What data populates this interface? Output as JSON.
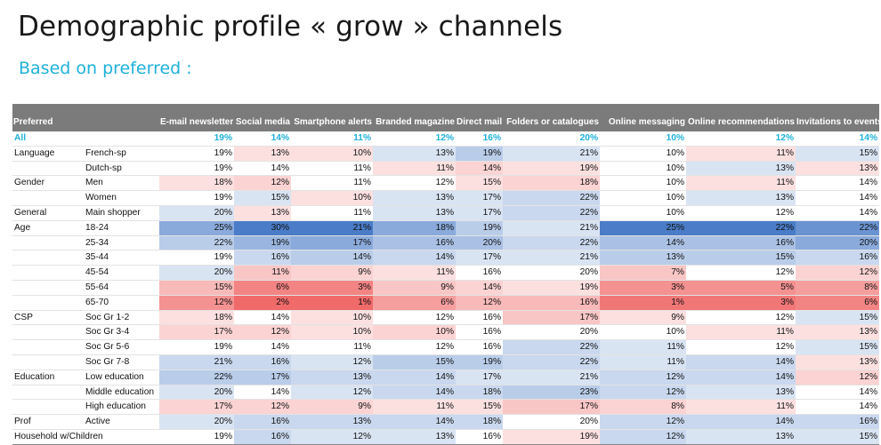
{
  "page": {
    "title": "Demographic profile « grow » channels",
    "subtitle": "Based on preferred :"
  },
  "colors": {
    "header_bg": "#7b7b7b",
    "accent": "#1fb1d9",
    "high": "#4a7cc7",
    "low": "#f06a6a"
  },
  "chart_data": {
    "type": "heatmap",
    "row_header": "Preferred",
    "columns": [
      "E-mail newsletter",
      "Social media",
      "Smartphone alerts",
      "Branded magazine",
      "Direct mail",
      "Folders or catalogues",
      "Online messaging",
      "Online recommendations",
      "Invitations to events"
    ],
    "rows": [
      {
        "group": "All",
        "label": "",
        "values": [
          19,
          14,
          11,
          12,
          16,
          20,
          10,
          12,
          14
        ]
      },
      {
        "group": "Language",
        "label": "French-sp",
        "values": [
          19,
          13,
          10,
          13,
          19,
          21,
          10,
          11,
          15
        ]
      },
      {
        "group": "",
        "label": "Dutch-sp",
        "values": [
          19,
          14,
          11,
          11,
          14,
          19,
          10,
          13,
          13
        ]
      },
      {
        "group": "Gender",
        "label": "Men",
        "values": [
          18,
          12,
          11,
          12,
          15,
          18,
          10,
          11,
          14
        ]
      },
      {
        "group": "",
        "label": "Women",
        "values": [
          19,
          15,
          10,
          13,
          17,
          22,
          10,
          13,
          14
        ]
      },
      {
        "group": "General",
        "label": "Main shopper",
        "values": [
          20,
          13,
          11,
          13,
          17,
          22,
          10,
          12,
          14
        ]
      },
      {
        "group": "Age",
        "label": "18-24",
        "values": [
          25,
          30,
          21,
          18,
          19,
          21,
          25,
          22,
          22
        ]
      },
      {
        "group": "",
        "label": "25-34",
        "values": [
          22,
          19,
          17,
          16,
          20,
          22,
          14,
          16,
          20
        ]
      },
      {
        "group": "",
        "label": "35-44",
        "values": [
          19,
          16,
          14,
          14,
          17,
          21,
          13,
          15,
          16
        ]
      },
      {
        "group": "",
        "label": "45-54",
        "values": [
          20,
          11,
          9,
          11,
          16,
          20,
          7,
          12,
          12
        ]
      },
      {
        "group": "",
        "label": "55-64",
        "values": [
          15,
          6,
          3,
          9,
          14,
          19,
          3,
          5,
          8
        ]
      },
      {
        "group": "",
        "label": "65-70",
        "values": [
          12,
          2,
          1,
          6,
          12,
          16,
          1,
          3,
          6
        ]
      },
      {
        "group": "CSP",
        "label": "Soc Gr 1-2",
        "values": [
          18,
          14,
          10,
          12,
          16,
          17,
          9,
          12,
          15
        ]
      },
      {
        "group": "",
        "label": "Soc Gr 3-4",
        "values": [
          17,
          12,
          10,
          10,
          16,
          20,
          10,
          11,
          13
        ]
      },
      {
        "group": "",
        "label": "Soc Gr 5-6",
        "values": [
          19,
          14,
          11,
          12,
          16,
          22,
          11,
          12,
          15
        ]
      },
      {
        "group": "",
        "label": "Soc Gr 7-8",
        "values": [
          21,
          16,
          12,
          15,
          19,
          22,
          11,
          14,
          13
        ]
      },
      {
        "group": "Education",
        "label": "Low education",
        "values": [
          22,
          17,
          13,
          14,
          17,
          21,
          12,
          14,
          12
        ]
      },
      {
        "group": "",
        "label": "Middle education",
        "values": [
          20,
          14,
          12,
          14,
          18,
          23,
          12,
          13,
          14
        ]
      },
      {
        "group": "",
        "label": "High education",
        "values": [
          17,
          12,
          9,
          11,
          15,
          17,
          8,
          11,
          14
        ]
      },
      {
        "group": "Prof",
        "label": "Active",
        "values": [
          20,
          16,
          13,
          14,
          18,
          20,
          12,
          14,
          16
        ]
      },
      {
        "group": "Household w/Children",
        "label": "",
        "values": [
          19,
          16,
          12,
          13,
          16,
          19,
          12,
          13,
          15
        ]
      }
    ]
  }
}
